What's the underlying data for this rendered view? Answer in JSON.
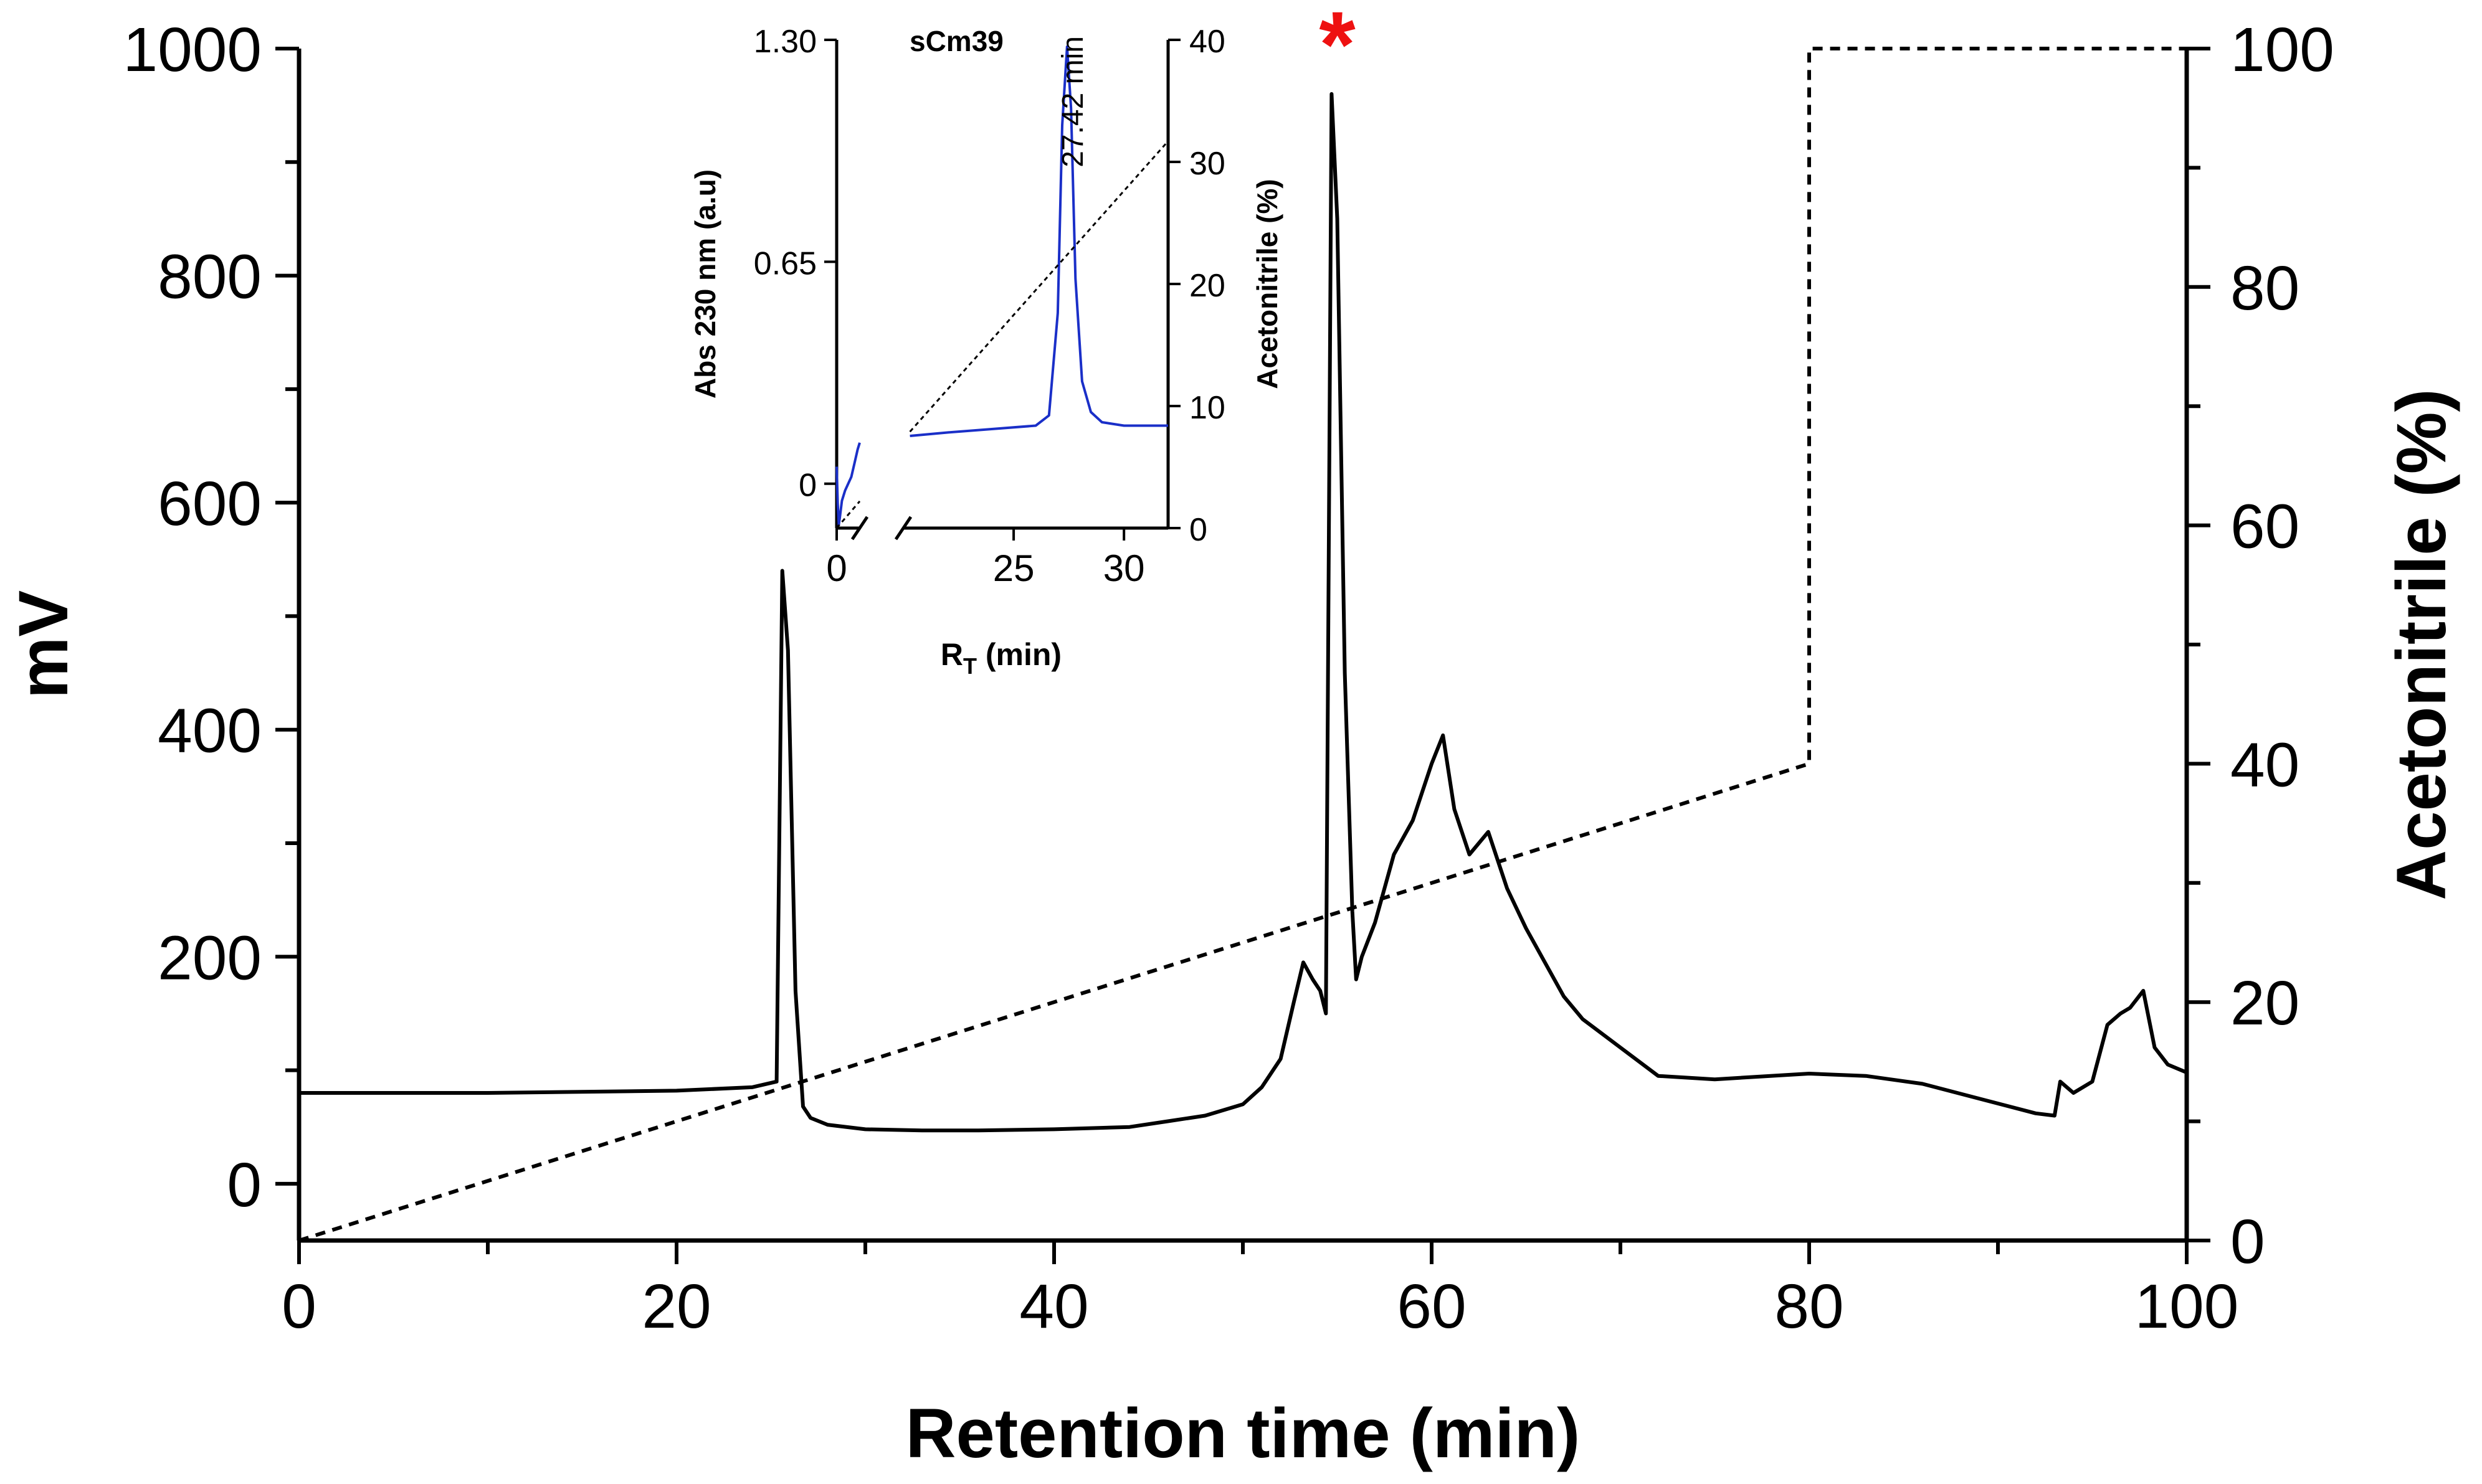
{
  "chart_data": [
    {
      "name": "main",
      "type": "line",
      "title": "",
      "xlabel": "Retention time (min)",
      "ylabel": "mV",
      "y2label": "Acetonitrile (%)",
      "xlim": [
        0,
        100
      ],
      "ylim": [
        -50,
        1000
      ],
      "y2lim": [
        0,
        100
      ],
      "xticks": [
        0,
        20,
        40,
        60,
        80,
        100
      ],
      "xtick_labels": [
        "0",
        "20",
        "40",
        "60",
        "80",
        "100"
      ],
      "yticks": [
        0,
        200,
        400,
        600,
        800,
        1000
      ],
      "ytick_labels": [
        "0",
        "200",
        "400",
        "600",
        "800",
        "1000"
      ],
      "y2ticks": [
        0,
        20,
        40,
        60,
        80,
        100
      ],
      "y2tick_labels": [
        "0",
        "20",
        "40",
        "60",
        "80",
        "100"
      ],
      "annotation": {
        "text": "*",
        "x": 55.0,
        "y": 1000,
        "color": "#ee1111"
      },
      "series": [
        {
          "name": "mV",
          "axis": "left",
          "style": "solid",
          "color": "#000000",
          "x": [
            0,
            10,
            20,
            24,
            25.3,
            25.6,
            25.9,
            26.3,
            26.7,
            27.1,
            28,
            30,
            33,
            36,
            40,
            44,
            46,
            48,
            50,
            51,
            52,
            52.7,
            53.2,
            53.7,
            54.1,
            54.4,
            54.7,
            55.0,
            55.4,
            55.8,
            56.0,
            56.3,
            57,
            58,
            59,
            60,
            60.6,
            61.2,
            62,
            63,
            64,
            65,
            66,
            67,
            68,
            70,
            72,
            75,
            80,
            83,
            86,
            89,
            92,
            93,
            93.3,
            94,
            95,
            95.8,
            96.5,
            97,
            97.7,
            98.3,
            99,
            100
          ],
          "y": [
            80,
            80,
            82,
            85,
            90,
            540,
            470,
            170,
            68,
            58,
            52,
            48,
            47,
            47,
            48,
            50,
            55,
            60,
            70,
            85,
            110,
            160,
            195,
            180,
            170,
            150,
            960,
            850,
            450,
            240,
            180,
            200,
            230,
            290,
            320,
            370,
            395,
            330,
            290,
            310,
            260,
            225,
            195,
            165,
            145,
            120,
            95,
            92,
            97,
            95,
            88,
            75,
            62,
            60,
            90,
            80,
            90,
            140,
            150,
            155,
            170,
            120,
            105,
            98
          ]
        },
        {
          "name": "Acetonitrile (%)",
          "axis": "right",
          "style": "dashed",
          "color": "#000000",
          "x": [
            0,
            80,
            80,
            100
          ],
          "y": [
            0,
            40,
            100,
            100
          ]
        }
      ]
    },
    {
      "name": "inset",
      "type": "line",
      "title": "sCm39",
      "xlabel": "R",
      "xlabel_sub": "T",
      "xlabel_suffix": " (min)",
      "ylabel": "Abs 230 nm (a.u)",
      "y2label": "Acetonitrile (%)",
      "ylim": [
        -0.13,
        1.3
      ],
      "y2lim": [
        0,
        40
      ],
      "xticks": [
        0,
        25,
        30
      ],
      "xtick_labels": [
        "0",
        "25",
        "30"
      ],
      "yticks": [
        0,
        0.65,
        1.3
      ],
      "ytick_labels": [
        "0",
        "0.65",
        "1.30"
      ],
      "y2ticks": [
        0,
        10,
        20,
        30,
        40
      ],
      "y2tick_labels": [
        "0",
        "10",
        "20",
        "30",
        "40"
      ],
      "x_break": {
        "before_max": 2.2,
        "after_min": 20
      },
      "annotation": {
        "text": "27.42 min",
        "x": 27.42
      },
      "series": [
        {
          "name": "Abs 230 nm",
          "axis": "left",
          "style": "solid",
          "color": "#1a2fc8",
          "segments": [
            {
              "x": [
                0,
                0.1,
                0.2,
                0.3,
                0.5,
                0.8,
                1.1,
                1.4,
                1.7,
                2.0,
                2.2
              ],
              "y": [
                0.05,
                -0.06,
                -0.12,
                -0.1,
                -0.05,
                -0.02,
                0.0,
                0.02,
                0.06,
                0.1,
                0.12
              ]
            },
            {
              "x": [
                20.3,
                22,
                24,
                26,
                26.6,
                27.0,
                27.2,
                27.42,
                27.6,
                27.8,
                28.1,
                28.5,
                29,
                30,
                31,
                32
              ],
              "y": [
                0.14,
                0.15,
                0.16,
                0.17,
                0.2,
                0.5,
                1.05,
                1.28,
                1.1,
                0.6,
                0.3,
                0.21,
                0.18,
                0.17,
                0.17,
                0.17
              ]
            }
          ]
        },
        {
          "name": "Acetonitrile (%)",
          "axis": "right",
          "style": "dotted",
          "color": "#000000",
          "segments": [
            {
              "x": [
                0,
                2.2
              ],
              "y": [
                0,
                2.2
              ]
            },
            {
              "x": [
                20.3,
                32
              ],
              "y": [
                7.9,
                31.7
              ]
            }
          ]
        }
      ]
    }
  ]
}
